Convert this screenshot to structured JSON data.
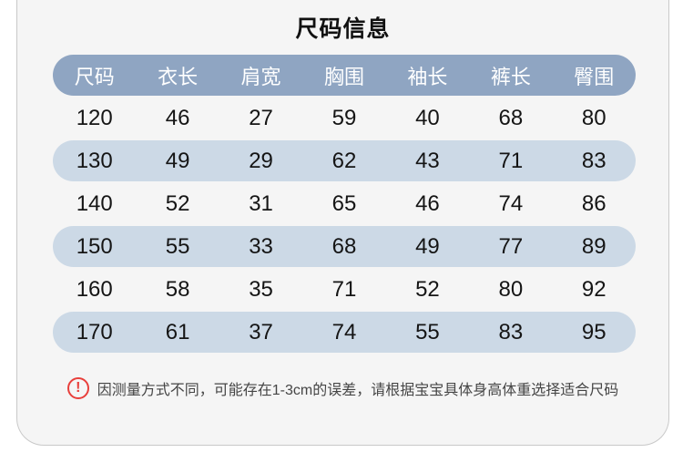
{
  "title": "尺码信息",
  "table": {
    "headers": [
      "尺码",
      "衣长",
      "肩宽",
      "胸围",
      "袖长",
      "裤长",
      "臀围"
    ],
    "rows": [
      [
        "120",
        "46",
        "27",
        "59",
        "40",
        "68",
        "80"
      ],
      [
        "130",
        "49",
        "29",
        "62",
        "43",
        "71",
        "83"
      ],
      [
        "140",
        "52",
        "31",
        "65",
        "46",
        "74",
        "86"
      ],
      [
        "150",
        "55",
        "33",
        "68",
        "49",
        "77",
        "89"
      ],
      [
        "160",
        "58",
        "35",
        "71",
        "52",
        "80",
        "92"
      ],
      [
        "170",
        "61",
        "37",
        "74",
        "55",
        "83",
        "95"
      ]
    ]
  },
  "note": {
    "icon_glyph": "!",
    "text": "因测量方式不同，可能存在1-3cm的误差，请根据宝宝具体身高体重选择适合尺码"
  },
  "colors": {
    "header_pill_bg": "#8fa5c2",
    "alt_row_bg": "#ccd9e6",
    "panel_bg": "#f5f5f5",
    "panel_border": "#c9c9c9",
    "warning_red": "#e83f3b",
    "text_dark": "#151515",
    "header_text": "#ffffff"
  }
}
